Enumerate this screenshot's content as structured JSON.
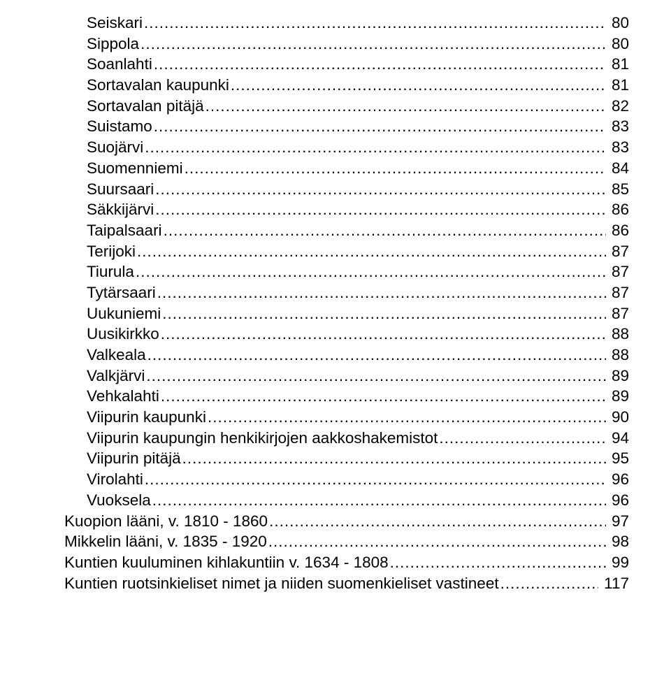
{
  "toc": {
    "font_size_pt": 17,
    "font_family": "Arial",
    "text_color": "#000000",
    "background_color": "#ffffff",
    "leader_char": ".",
    "entries": [
      {
        "label": "Seiskari",
        "page": "80",
        "indent": 2
      },
      {
        "label": "Sippola",
        "page": "80",
        "indent": 2
      },
      {
        "label": "Soanlahti",
        "page": "81",
        "indent": 2
      },
      {
        "label": "Sortavalan kaupunki",
        "page": "81",
        "indent": 2
      },
      {
        "label": "Sortavalan pitäjä",
        "page": "82",
        "indent": 2
      },
      {
        "label": "Suistamo",
        "page": "83",
        "indent": 2
      },
      {
        "label": "Suojärvi",
        "page": "83",
        "indent": 2
      },
      {
        "label": "Suomenniemi",
        "page": "84",
        "indent": 2
      },
      {
        "label": "Suursaari",
        "page": "85",
        "indent": 2
      },
      {
        "label": "Säkkijärvi",
        "page": "86",
        "indent": 2
      },
      {
        "label": "Taipalsaari",
        "page": "86",
        "indent": 2
      },
      {
        "label": "Terijoki",
        "page": "87",
        "indent": 2
      },
      {
        "label": "Tiurula",
        "page": "87",
        "indent": 2
      },
      {
        "label": "Tytärsaari",
        "page": "87",
        "indent": 2
      },
      {
        "label": "Uukuniemi",
        "page": "87",
        "indent": 2
      },
      {
        "label": "Uusikirkko",
        "page": "88",
        "indent": 2
      },
      {
        "label": "Valkeala",
        "page": "88",
        "indent": 2
      },
      {
        "label": "Valkjärvi",
        "page": "89",
        "indent": 2
      },
      {
        "label": "Vehkalahti",
        "page": "89",
        "indent": 2
      },
      {
        "label": "Viipurin kaupunki",
        "page": "90",
        "indent": 2
      },
      {
        "label": "Viipurin kaupungin henkikirjojen aakkoshakemistot",
        "page": "94",
        "indent": 2
      },
      {
        "label": "Viipurin pitäjä",
        "page": "95",
        "indent": 2
      },
      {
        "label": "Virolahti",
        "page": "96",
        "indent": 2
      },
      {
        "label": "Vuoksela",
        "page": "96",
        "indent": 2
      },
      {
        "label": "Kuopion lääni, v. 1810 - 1860",
        "page": "97",
        "indent": 1
      },
      {
        "label": "Mikkelin lääni, v. 1835 - 1920",
        "page": "98",
        "indent": 1
      },
      {
        "label": "Kuntien kuuluminen kihlakuntiin v. 1634 - 1808",
        "page": "99",
        "indent": 1
      },
      {
        "label": "Kuntien ruotsinkieliset nimet ja niiden suomenkieliset vastineet",
        "page": "117",
        "indent": 1
      }
    ]
  }
}
